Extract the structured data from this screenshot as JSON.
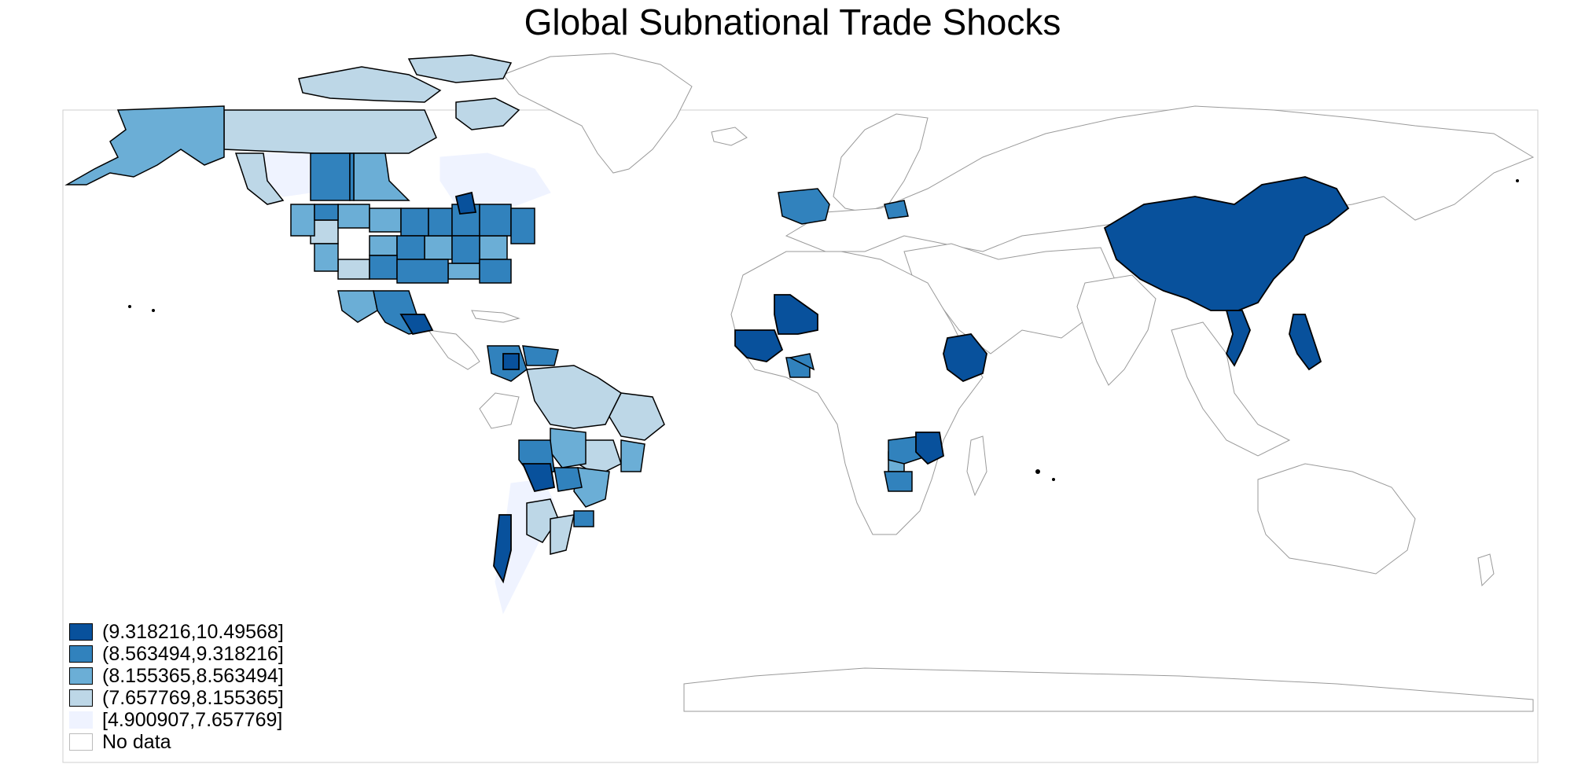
{
  "title": "Global Subnational Trade Shocks",
  "colors": {
    "c5": "#08519c",
    "c4": "#3182bd",
    "c3": "#6baed6",
    "c2": "#bdd7e7",
    "c1": "#eff3ff",
    "nodata": "#ffffff",
    "border_data": "#000000",
    "border_nodata": "#9a9a9a"
  },
  "legend": [
    {
      "label": "(9.318216,10.49568]",
      "color": "#08519c",
      "border": "#000000"
    },
    {
      "label": "(8.563494,9.318216]",
      "color": "#3182bd",
      "border": "#000000"
    },
    {
      "label": "(8.155365,8.563494]",
      "color": "#6baed6",
      "border": "#000000"
    },
    {
      "label": "(7.657769,8.155365]",
      "color": "#bdd7e7",
      "border": "#000000"
    },
    {
      "label": "[4.900907,7.657769]",
      "color": "#eff3ff",
      "border": "#eff3ff"
    },
    {
      "label": "No data",
      "color": "#ffffff",
      "border": "#bbbbbb"
    }
  ]
}
